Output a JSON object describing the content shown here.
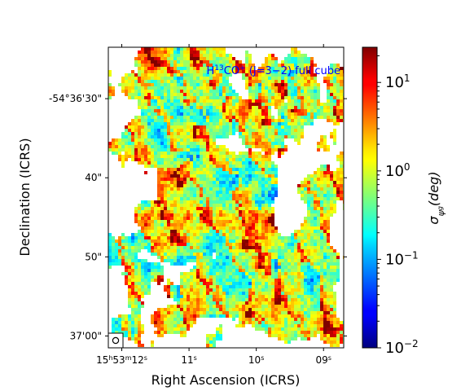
{
  "chart_data": {
    "type": "heatmap",
    "title": "",
    "annotation": {
      "parts": [
        {
          "text": "H",
          "sup": false
        },
        {
          "text": "13",
          "sup": true
        },
        {
          "text": "CO",
          "sup": false
        },
        {
          "text": "+",
          "sup": true
        },
        {
          "text": " (J=3−2) full cube",
          "sup": false
        }
      ],
      "color": "#0000ff"
    },
    "xlabel": "Right Ascension (ICRS)",
    "ylabel": "Declination (ICRS)",
    "colorbar_label": {
      "main": "σ",
      "sub": "ψ",
      "subsub": "g",
      "rest": "(deg)"
    },
    "colorbar_scale": "log",
    "colorbar_range": [
      0.01,
      25
    ],
    "colormap": "jet",
    "colorbar_ticks": [
      {
        "value": 0.01,
        "base": "10",
        "exp": "−2"
      },
      {
        "value": 0.1,
        "base": "10",
        "exp": "−1"
      },
      {
        "value": 1,
        "base": "10",
        "exp": "0"
      },
      {
        "value": 10,
        "base": "10",
        "exp": "1"
      }
    ],
    "x_ticks": [
      {
        "ra_s": 12,
        "parts": [
          {
            "t": "15"
          },
          {
            "t": "h",
            "sup": true
          },
          {
            "t": "53"
          },
          {
            "t": "m",
            "sup": true
          },
          {
            "t": "12"
          },
          {
            "t": "s",
            "sup": true
          }
        ]
      },
      {
        "ra_s": 11,
        "parts": [
          {
            "t": "11"
          },
          {
            "t": "s",
            "sup": true
          }
        ]
      },
      {
        "ra_s": 10,
        "parts": [
          {
            "t": "10"
          },
          {
            "t": "s",
            "sup": true
          }
        ]
      },
      {
        "ra_s": 9,
        "parts": [
          {
            "t": "09"
          },
          {
            "t": "s",
            "sup": true
          }
        ]
      }
    ],
    "x_range_ra_s": [
      12.2,
      8.7
    ],
    "y_ticks": [
      {
        "dec_arcsec": 30,
        "label": "-54°36'30\""
      },
      {
        "dec_arcsec": 40,
        "label": "40\""
      },
      {
        "dec_arcsec": 50,
        "label": "50\""
      },
      {
        "dec_arcsec": 60,
        "label": "37'00\""
      }
    ],
    "y_range_dec_arcsec": [
      23.5,
      61.5
    ],
    "beam_marker": "circle",
    "grid": false
  }
}
